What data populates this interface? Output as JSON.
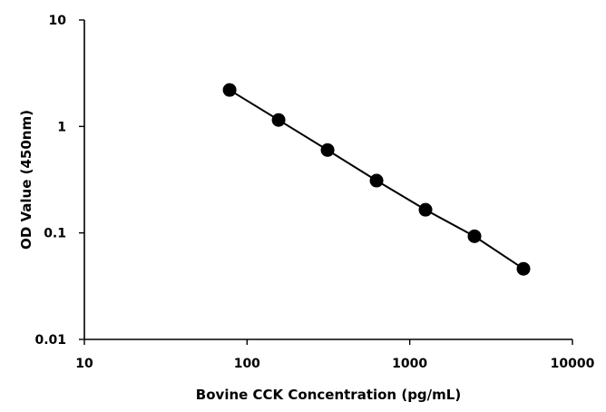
{
  "chart_data": {
    "type": "scatter",
    "title": "",
    "xlabel": "Bovine CCK Concentration  (pg/mL)",
    "ylabel": "OD Value (450nm)",
    "xscale": "log",
    "yscale": "log",
    "xlim": [
      10,
      10000
    ],
    "ylim": [
      0.01,
      10
    ],
    "x_ticks": [
      10,
      100,
      1000,
      10000
    ],
    "x_tick_labels": [
      "10",
      "100",
      "1000",
      "10000"
    ],
    "y_ticks": [
      0.01,
      0.1,
      1,
      10
    ],
    "y_tick_labels": [
      "0.01",
      "0.1",
      "1",
      "10"
    ],
    "grid": false,
    "legend": "none",
    "series": [
      {
        "color": "#000000",
        "points": [
          {
            "x": 78.125,
            "y": 2.2
          },
          {
            "x": 156.25,
            "y": 1.15
          },
          {
            "x": 312.5,
            "y": 0.6
          },
          {
            "x": 625,
            "y": 0.31
          },
          {
            "x": 1250,
            "y": 0.165
          },
          {
            "x": 2500,
            "y": 0.093
          },
          {
            "x": 5000,
            "y": 0.046
          }
        ]
      }
    ]
  }
}
